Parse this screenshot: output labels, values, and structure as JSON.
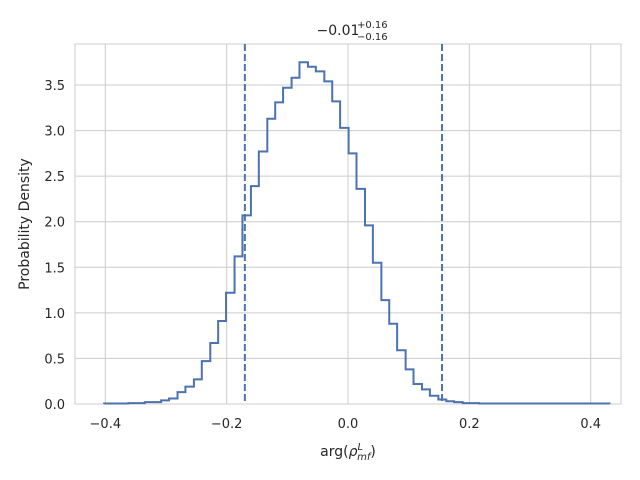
{
  "chart_data": {
    "type": "line",
    "step": true,
    "title": {
      "value": "−0.01",
      "upper": "+0.16",
      "lower": "−0.16"
    },
    "xlabel": {
      "base": "arg(",
      "rho": "ρ",
      "sup": "L",
      "sub": "mf",
      "close": ")"
    },
    "ylabel": "Probability Density",
    "xlim": [
      -0.45,
      0.45
    ],
    "ylim": [
      0,
      3.95
    ],
    "grid": true,
    "x_ticks": [
      {
        "value": -0.4,
        "label": "−0.4"
      },
      {
        "value": -0.2,
        "label": "−0.2"
      },
      {
        "value": 0.0,
        "label": "0.0"
      },
      {
        "value": 0.2,
        "label": "0.2"
      },
      {
        "value": 0.4,
        "label": "0.4"
      }
    ],
    "y_ticks": [
      {
        "value": 0.0,
        "label": "0.0"
      },
      {
        "value": 0.5,
        "label": "0.5"
      },
      {
        "value": 1.0,
        "label": "1.0"
      },
      {
        "value": 1.5,
        "label": "1.5"
      },
      {
        "value": 2.0,
        "label": "2.0"
      },
      {
        "value": 2.5,
        "label": "2.5"
      },
      {
        "value": 3.0,
        "label": "3.0"
      },
      {
        "value": 3.5,
        "label": "3.5"
      }
    ],
    "bin_edges": [
      -0.402,
      -0.388,
      -0.375,
      -0.362,
      -0.348,
      -0.335,
      -0.321,
      -0.308,
      -0.295,
      -0.281,
      -0.268,
      -0.254,
      -0.241,
      -0.227,
      -0.214,
      -0.201,
      -0.187,
      -0.174,
      -0.16,
      -0.147,
      -0.133,
      -0.12,
      -0.107,
      -0.093,
      -0.08,
      -0.066,
      -0.053,
      -0.039,
      -0.026,
      -0.013,
      0.001,
      0.014,
      0.028,
      0.041,
      0.055,
      0.068,
      0.081,
      0.095,
      0.108,
      0.122,
      0.135,
      0.149,
      0.162,
      0.175,
      0.189,
      0.202,
      0.216,
      0.229,
      0.243,
      0.256,
      0.269,
      0.283,
      0.296,
      0.31,
      0.323,
      0.337,
      0.35,
      0.363,
      0.377,
      0.39,
      0.404,
      0.417,
      0.431
    ],
    "densities": [
      0.005,
      0.005,
      0.005,
      0.01,
      0.01,
      0.02,
      0.02,
      0.04,
      0.06,
      0.13,
      0.19,
      0.27,
      0.47,
      0.67,
      0.91,
      1.22,
      1.62,
      2.07,
      2.39,
      2.77,
      3.13,
      3.31,
      3.47,
      3.58,
      3.75,
      3.7,
      3.65,
      3.54,
      3.32,
      3.03,
      2.75,
      2.36,
      1.96,
      1.55,
      1.14,
      0.88,
      0.59,
      0.38,
      0.22,
      0.16,
      0.09,
      0.05,
      0.03,
      0.02,
      0.01,
      0.01,
      0.005,
      0.005,
      0.005,
      0.005,
      0.005,
      0.005,
      0.005,
      0.005,
      0.005,
      0.005,
      0.005,
      0.005,
      0.005,
      0.005,
      0.005,
      0.005
    ],
    "vlines": [
      -0.17,
      0.155
    ],
    "colors": {
      "line": "#4c72b0",
      "grid": "#cccccc",
      "spine": "#cccccc",
      "text": "#262626"
    }
  }
}
